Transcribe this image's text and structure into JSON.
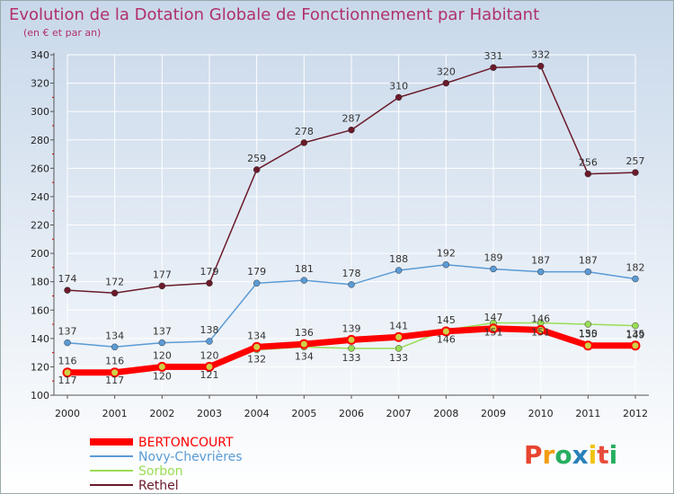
{
  "chart_data": {
    "type": "line",
    "title": "Evolution de la Dotation Globale de Fonctionnement par Habitant",
    "subtitle": "(en € et par an)",
    "xlabel": "",
    "ylabel": "",
    "ylim": [
      100,
      340
    ],
    "yticks": [
      100,
      120,
      140,
      160,
      180,
      200,
      220,
      240,
      260,
      280,
      300,
      320,
      340
    ],
    "categories": [
      "2000",
      "2001",
      "2002",
      "2003",
      "2004",
      "2005",
      "2006",
      "2007",
      "2008",
      "2009",
      "2010",
      "2011",
      "2012"
    ],
    "grid": true,
    "legend": "bottom-left",
    "series": [
      {
        "name": "BERTONCOURT",
        "color": "#ff0000",
        "values": [
          116,
          116,
          120,
          120,
          134,
          136,
          139,
          141,
          145,
          147,
          146,
          135,
          135
        ]
      },
      {
        "name": "Novy-Chevrières",
        "color": "#5b9bd5",
        "values": [
          137,
          134,
          137,
          138,
          179,
          181,
          178,
          188,
          192,
          189,
          187,
          187,
          182
        ]
      },
      {
        "name": "Sorbon",
        "color": "#99dd55",
        "values": [
          117,
          117,
          120,
          121,
          132,
          134,
          133,
          133,
          146,
          151,
          151,
          150,
          149
        ]
      },
      {
        "name": "Rethel",
        "color": "#6b1a2a",
        "values": [
          174,
          172,
          177,
          179,
          259,
          278,
          287,
          310,
          320,
          331,
          332,
          256,
          257
        ]
      }
    ]
  },
  "logo": {
    "text": "Proxiti",
    "letters": [
      "P",
      "r",
      "o",
      "x",
      "i",
      "t",
      "i"
    ],
    "colors": [
      "#e8442f",
      "#f39c12",
      "#27ae60",
      "#2980b9",
      "#f1c40f",
      "#e74c3c",
      "#27ae60"
    ]
  }
}
